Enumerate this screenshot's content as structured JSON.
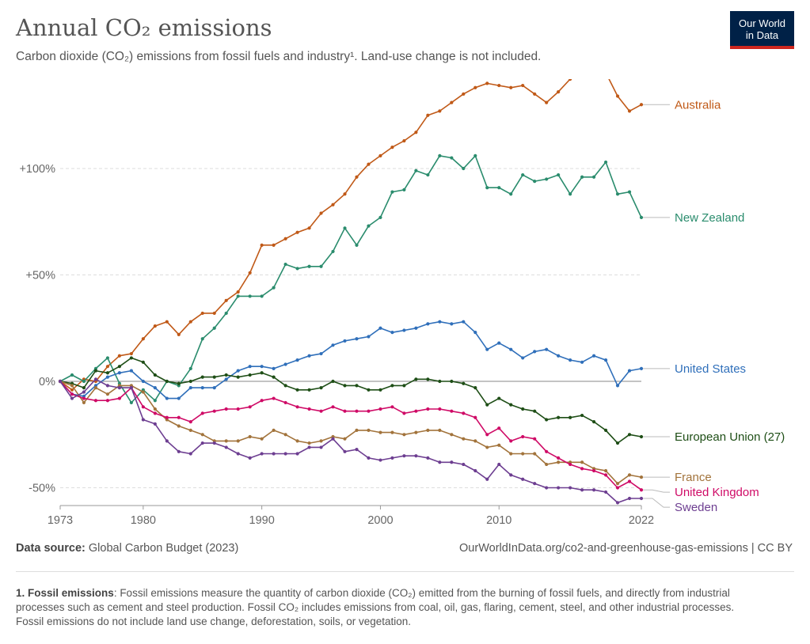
{
  "header": {
    "title": "Annual CO₂ emissions",
    "subtitle": "Carbon dioxide (CO₂) emissions from fossil fuels and industry¹. Land-use change is not included.",
    "logo_line1": "Our World",
    "logo_line2": "in Data"
  },
  "footer": {
    "source_label": "Data source:",
    "source_text": "Global Carbon Budget (2023)",
    "url_text": "OurWorldInData.org/co2-and-greenhouse-gas-emissions | CC BY",
    "note_label": "1. Fossil emissions",
    "note_text": ": Fossil emissions measure the quantity of carbon dioxide (CO₂) emitted from the burning of fossil fuels, and directly from industrial processes such as cement and steel production. Fossil CO₂ includes emissions from coal, oil, gas, flaring, cement, steel, and other industrial processes. Fossil emissions do not include land use change, deforestation, soils, or vegetation."
  },
  "chart_data": {
    "type": "line",
    "title": "Annual CO₂ emissions",
    "xlabel": "",
    "ylabel": "",
    "xlim": [
      1973,
      2022
    ],
    "ylim": [
      -55,
      142
    ],
    "x_ticks": [
      1973,
      1980,
      1990,
      2000,
      2010,
      2022
    ],
    "y_ticks": [
      -50,
      0,
      50,
      100
    ],
    "y_tick_labels": [
      "-50%",
      "0%",
      "+50%",
      "+100%"
    ],
    "grid": "horizontal dashed",
    "legend": "right, labels at line ends",
    "x": [
      1973,
      1974,
      1975,
      1976,
      1977,
      1978,
      1979,
      1980,
      1981,
      1982,
      1983,
      1984,
      1985,
      1986,
      1987,
      1988,
      1989,
      1990,
      1991,
      1992,
      1993,
      1994,
      1995,
      1996,
      1997,
      1998,
      1999,
      2000,
      2001,
      2002,
      2003,
      2004,
      2005,
      2006,
      2007,
      2008,
      2009,
      2010,
      2011,
      2012,
      2013,
      2014,
      2015,
      2016,
      2017,
      2018,
      2019,
      2020,
      2021,
      2022
    ],
    "series": [
      {
        "name": "Australia",
        "color": "#c05917",
        "values": [
          0,
          -4,
          1,
          0,
          7,
          12,
          13,
          20,
          26,
          28,
          22,
          28,
          32,
          32,
          38,
          42,
          51,
          64,
          64,
          67,
          70,
          72,
          79,
          83,
          88,
          96,
          102,
          106,
          110,
          113,
          117,
          125,
          127,
          131,
          135,
          138,
          140,
          139,
          138,
          139,
          135,
          131,
          136,
          142,
          144,
          145,
          145,
          134,
          127,
          130
        ]
      },
      {
        "name": "New Zealand",
        "color": "#2a8c6d",
        "values": [
          0,
          3,
          0,
          6,
          11,
          -1,
          -10,
          -4,
          -9,
          0,
          -2,
          6,
          20,
          25,
          32,
          40,
          40,
          40,
          44,
          55,
          53,
          54,
          54,
          61,
          72,
          64,
          73,
          77,
          89,
          90,
          99,
          97,
          106,
          105,
          100,
          106,
          91,
          91,
          88,
          97,
          94,
          95,
          97,
          88,
          96,
          96,
          103,
          88,
          89,
          77
        ]
      },
      {
        "name": "United States",
        "color": "#2f6fba",
        "values": [
          0,
          -6,
          -7,
          -2,
          2,
          4,
          5,
          0,
          -3,
          -8,
          -8,
          -3,
          -3,
          -3,
          1,
          5,
          7,
          7,
          6,
          8,
          10,
          12,
          13,
          17,
          19,
          20,
          21,
          25,
          23,
          24,
          25,
          27,
          28,
          27,
          28,
          23,
          15,
          18,
          15,
          11,
          14,
          15,
          12,
          10,
          9,
          12,
          10,
          -2,
          5,
          6
        ]
      },
      {
        "name": "European Union (27)",
        "color": "#1e4e16",
        "values": [
          0,
          -1,
          -3,
          5,
          4,
          7,
          11,
          9,
          3,
          0,
          -1,
          0,
          2,
          2,
          3,
          2,
          3,
          4,
          2,
          -2,
          -4,
          -4,
          -3,
          0,
          -2,
          -2,
          -4,
          -4,
          -2,
          -2,
          1,
          1,
          0,
          0,
          -1,
          -3,
          -11,
          -8,
          -11,
          -13,
          -14,
          -18,
          -17,
          -17,
          -16,
          -19,
          -23,
          -29,
          -25,
          -26
        ]
      },
      {
        "name": "France",
        "color": "#a2733b",
        "values": [
          0,
          -2,
          -10,
          -3,
          -6,
          -2,
          -2,
          -5,
          -13,
          -18,
          -21,
          -23,
          -25,
          -28,
          -28,
          -28,
          -26,
          -27,
          -23,
          -25,
          -28,
          -29,
          -28,
          -26,
          -27,
          -23,
          -23,
          -24,
          -24,
          -25,
          -24,
          -23,
          -23,
          -25,
          -27,
          -28,
          -31,
          -30,
          -34,
          -34,
          -34,
          -39,
          -38,
          -38,
          -38,
          -41,
          -42,
          -48,
          -44,
          -45
        ]
      },
      {
        "name": "United Kingdom",
        "color": "#cf0a66",
        "values": [
          0,
          -6,
          -8,
          -9,
          -9,
          -8,
          -3,
          -12,
          -15,
          -17,
          -17,
          -19,
          -15,
          -14,
          -13,
          -13,
          -12,
          -9,
          -8,
          -10,
          -12,
          -13,
          -14,
          -12,
          -14,
          -14,
          -14,
          -13,
          -12,
          -15,
          -14,
          -13,
          -13,
          -14,
          -15,
          -17,
          -25,
          -22,
          -28,
          -26,
          -27,
          -33,
          -36,
          -39,
          -41,
          -42,
          -44,
          -50,
          -47,
          -51
        ]
      },
      {
        "name": "Sweden",
        "color": "#6d3e91",
        "values": [
          0,
          -8,
          -5,
          1,
          -2,
          -3,
          -3,
          -18,
          -20,
          -28,
          -33,
          -34,
          -29,
          -29,
          -31,
          -34,
          -36,
          -34,
          -34,
          -34,
          -34,
          -31,
          -31,
          -27,
          -33,
          -32,
          -36,
          -37,
          -36,
          -35,
          -35,
          -36,
          -38,
          -38,
          -39,
          -42,
          -46,
          -39,
          -44,
          -46,
          -48,
          -50,
          -50,
          -50,
          -51,
          -51,
          -52,
          -57,
          -55,
          -55
        ]
      }
    ]
  }
}
